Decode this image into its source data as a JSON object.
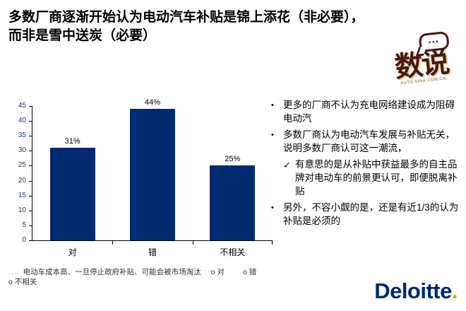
{
  "title": {
    "line1": "多数厂商逐渐开始认为电动汽车补贴是锦上添花（非必要），",
    "line2": "而非是雪中送炭（必要）"
  },
  "badge": {
    "text": "数说",
    "dots": "•••",
    "subtext": "AUTO.SINA.COM.CN"
  },
  "chart_data": {
    "type": "bar",
    "categories": [
      "对",
      "错",
      "不相关"
    ],
    "values": [
      31,
      44,
      25
    ],
    "value_labels": [
      "31%",
      "44%",
      "25%"
    ],
    "ylim": [
      0,
      45
    ],
    "yticks": [
      0,
      5,
      10,
      15,
      20,
      25,
      30,
      35,
      40,
      45
    ],
    "bar_color": "#002B70",
    "grid": false,
    "legend_position": "none",
    "title": "",
    "xlabel": "",
    "ylabel": ""
  },
  "footnote": {
    "prefix": "....",
    "question": "电动车成本高、一旦停止政府补贴、可能会被市场淘汰",
    "options": [
      "o 对",
      "o 错",
      "o 不相关"
    ]
  },
  "bullets": [
    {
      "marker": "•",
      "text": "更多的厂商不认为充电网络建设成为阻碍电动汽"
    },
    {
      "marker": "•",
      "text": "多数厂商认为电动汽车发展与补贴无关，说明多数厂商认可这一潮流，"
    },
    {
      "marker": "✓",
      "text": "有意思的是从补贴中获益最多的自主品牌对电动车的前景更认可，即便脱离补贴"
    },
    {
      "marker": "•",
      "text": "另外，不容小觑的是，还是有近1/3的认为补贴是必须的"
    }
  ],
  "deloitte": {
    "wordmark": "Deloitte",
    "dot": "."
  }
}
